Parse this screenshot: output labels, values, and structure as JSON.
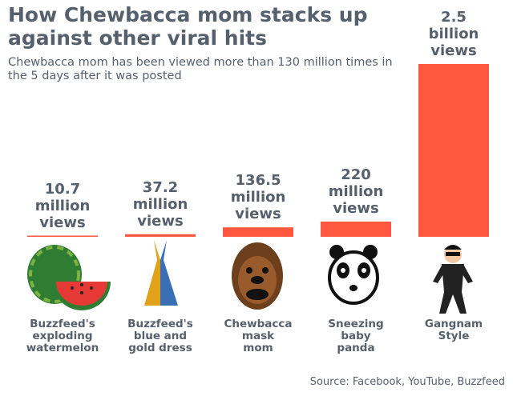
{
  "chart_data": {
    "type": "bar",
    "title": "How Chewbacca mom stacks up against other viral hits",
    "subtitle": "Chewbacca mom has been viewed more than 130 million times in the 5 days after it was posted",
    "categories": [
      "Buzzfeed's\nexploding\nwatermelon",
      "Buzzfeed's\nblue and\ngold dress",
      "Chewbacca\nmask\nmom",
      "Sneezing\nbaby\npanda",
      "Gangnam\nStyle"
    ],
    "values": [
      10.7,
      37.2,
      136.5,
      220,
      2500
    ],
    "value_labels": [
      "10.7\nmillion\nviews",
      "37.2\nmillion\nviews",
      "136.5\nmillion\nviews",
      "220\nmillion\nviews",
      "2.5\nbillion\nviews"
    ],
    "color": "#ff5740",
    "source": "Source: Facebook, YouTube, Buzzfeed"
  }
}
